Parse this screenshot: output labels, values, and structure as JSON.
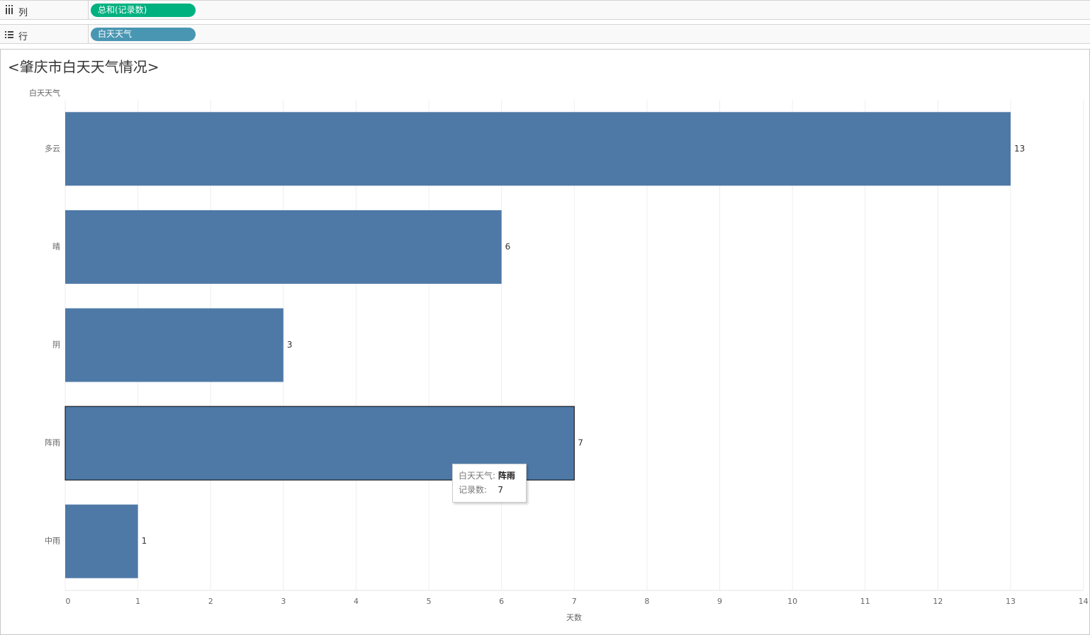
{
  "shelves": {
    "columns": {
      "label": "列",
      "pill": "总和(记录数)"
    },
    "rows": {
      "label": "行",
      "pill": "白天天气"
    }
  },
  "chart_data": {
    "type": "bar",
    "orientation": "horizontal",
    "title": "<肇庆市白天天气情况>",
    "y_label": "白天天气",
    "x_label": "天数",
    "categories": [
      "多云",
      "晴",
      "阴",
      "阵雨",
      "中雨"
    ],
    "values": [
      13,
      6,
      3,
      7,
      1
    ],
    "color": "#4e79a7",
    "xlim": [
      0,
      14
    ],
    "xticks": [
      0,
      1,
      2,
      3,
      4,
      5,
      6,
      7,
      8,
      9,
      10,
      11,
      12,
      13,
      14
    ],
    "grid": true
  },
  "tooltip": {
    "labels": [
      "白天天气:",
      "记录数:"
    ]
  }
}
